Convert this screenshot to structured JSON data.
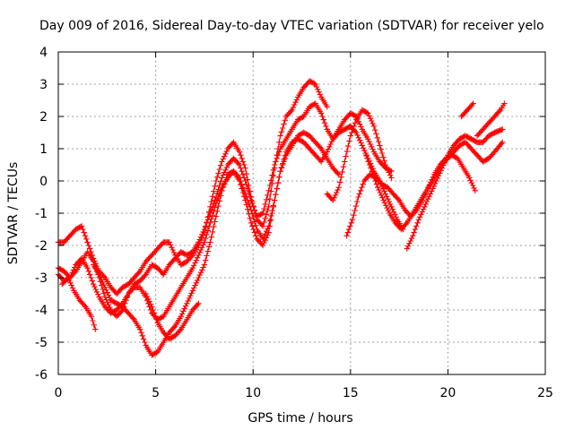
{
  "chart_data": {
    "type": "scatter",
    "title": "Day 009 of 2016, Sidereal Day-to-day VTEC variation (SDTVAR) for receiver yelo",
    "xlabel": "GPS time / hours",
    "ylabel": "SDTVAR / TECUs",
    "xlim": [
      0,
      25
    ],
    "ylim": [
      -6,
      4
    ],
    "xticks": [
      "0",
      "5",
      "10",
      "15",
      "20",
      "25"
    ],
    "yticks": [
      "-6",
      "-5",
      "-4",
      "-3",
      "-2",
      "-1",
      "0",
      "1",
      "2",
      "3",
      "4"
    ],
    "grid": true,
    "marker": "+",
    "color": "#ff0000",
    "series": [
      {
        "x": [
          0.0,
          0.3,
          0.6,
          0.9,
          1.2,
          1.5,
          1.8,
          2.1,
          2.4,
          2.7,
          3.0,
          3.3,
          3.6,
          3.9,
          4.2,
          4.5,
          4.8,
          5.1,
          5.4,
          5.7,
          6.0,
          6.3,
          6.6,
          6.9,
          7.2,
          7.5,
          7.8,
          8.1,
          8.4,
          8.7,
          9.0,
          9.3,
          9.6,
          9.9,
          10.2,
          10.5,
          10.8,
          11.1,
          11.4,
          11.7,
          12.0,
          12.3,
          12.6,
          12.9,
          13.2,
          13.5,
          13.8
        ],
        "y": [
          -1.9,
          -1.9,
          -1.7,
          -1.5,
          -1.4,
          -1.9,
          -2.4,
          -2.8,
          -3.0,
          -3.3,
          -3.5,
          -3.3,
          -3.2,
          -3.0,
          -2.8,
          -2.5,
          -2.3,
          -2.1,
          -1.9,
          -1.9,
          -2.3,
          -2.6,
          -2.5,
          -2.3,
          -2.0,
          -1.6,
          -0.8,
          0.0,
          0.6,
          1.0,
          1.2,
          0.9,
          0.4,
          -0.5,
          -1.2,
          -1.4,
          -0.8,
          0.4,
          1.4,
          2.0,
          2.2,
          2.6,
          2.9,
          3.1,
          3.0,
          2.6,
          2.3
        ]
      },
      {
        "x": [
          0.0,
          0.3,
          0.6,
          0.9,
          1.2,
          1.5,
          1.8,
          2.1,
          2.4,
          2.7,
          3.0,
          3.3,
          3.6,
          3.9,
          4.2,
          4.5,
          4.8,
          5.1,
          5.4,
          5.7,
          6.0,
          6.3,
          6.6,
          6.9,
          7.2,
          7.5,
          7.8,
          8.1,
          8.4,
          8.7,
          9.0,
          9.3,
          9.6,
          9.9,
          10.2,
          10.5,
          10.8,
          11.1,
          11.4,
          11.7,
          12.0,
          12.3,
          12.6,
          12.9,
          13.2,
          13.5,
          13.8,
          14.1,
          14.4,
          14.7,
          15.0,
          15.3,
          15.6,
          15.9,
          16.2,
          16.5,
          16.8,
          17.1
        ],
        "y": [
          -2.7,
          -2.8,
          -3.0,
          -2.8,
          -2.5,
          -2.2,
          -2.5,
          -3.0,
          -3.6,
          -4.0,
          -4.2,
          -4.0,
          -3.5,
          -3.2,
          -3.1,
          -2.9,
          -2.6,
          -2.7,
          -2.9,
          -2.6,
          -2.4,
          -2.2,
          -2.3,
          -2.2,
          -1.9,
          -1.5,
          -1.0,
          -0.5,
          0.1,
          0.5,
          0.7,
          0.5,
          0.0,
          -0.6,
          -1.1,
          -1.0,
          -0.3,
          0.5,
          1.0,
          1.3,
          1.6,
          1.9,
          2.0,
          2.3,
          2.4,
          2.1,
          1.6,
          1.3,
          1.6,
          1.9,
          2.1,
          2.0,
          1.6,
          1.3,
          0.9,
          0.6,
          0.4,
          0.3
        ]
      },
      {
        "x": [
          0.0,
          0.3,
          0.6,
          0.9,
          1.2,
          1.5,
          1.8,
          2.1,
          2.4,
          2.7,
          3.0,
          3.3,
          3.6,
          3.9,
          4.2,
          4.5,
          4.8,
          5.1,
          5.4,
          5.7,
          6.0,
          6.3,
          6.6,
          6.9,
          7.2,
          7.5,
          7.8,
          8.1,
          8.4,
          8.7,
          9.0,
          9.3,
          9.6,
          9.9,
          10.2,
          10.5,
          10.8,
          11.1,
          11.4,
          11.7,
          12.0,
          12.3,
          12.6,
          12.9,
          13.2,
          13.5,
          13.8,
          14.1,
          14.4,
          14.7,
          15.0,
          15.3,
          15.6,
          15.9,
          16.2,
          16.5,
          16.8,
          17.1,
          17.4,
          17.7
        ],
        "y": [
          -2.9,
          -3.1,
          -3.0,
          -2.6,
          -2.4,
          -2.7,
          -3.2,
          -3.6,
          -3.9,
          -4.1,
          -4.0,
          -3.8,
          -3.5,
          -3.3,
          -3.3,
          -3.6,
          -4.1,
          -4.3,
          -4.2,
          -3.9,
          -3.6,
          -3.3,
          -3.0,
          -2.7,
          -2.3,
          -1.9,
          -1.3,
          -0.7,
          -0.2,
          0.1,
          0.3,
          0.1,
          -0.4,
          -0.9,
          -1.5,
          -1.8,
          -1.4,
          -0.6,
          0.3,
          0.9,
          1.2,
          1.3,
          1.2,
          1.0,
          0.8,
          0.6,
          0.9,
          1.3,
          1.5,
          1.6,
          1.7,
          1.5,
          1.1,
          0.7,
          0.3,
          0.0,
          -0.4,
          -0.8,
          -1.2,
          -1.5
        ]
      },
      {
        "x": [
          1.8,
          2.1,
          2.4,
          2.7,
          3.0,
          3.3,
          3.6,
          3.9,
          4.2,
          4.5,
          4.8,
          5.1,
          5.4,
          5.7,
          6.0,
          6.3,
          6.6,
          6.9,
          7.2,
          7.5,
          7.8,
          8.1,
          8.4,
          8.7,
          9.0,
          9.3,
          9.6,
          9.9,
          10.2,
          10.5,
          10.8,
          11.1,
          11.4,
          11.7,
          12.0,
          12.3,
          12.6,
          12.9,
          13.2,
          13.5,
          13.8,
          14.1,
          14.4
        ],
        "y": [
          -2.6,
          -2.9,
          -3.3,
          -3.7,
          -3.8,
          -3.9,
          -4.1,
          -4.3,
          -4.6,
          -5.1,
          -5.4,
          -5.3,
          -5.0,
          -4.7,
          -4.5,
          -4.2,
          -3.8,
          -3.4,
          -3.0,
          -2.6,
          -1.9,
          -1.1,
          -0.3,
          0.2,
          0.3,
          0.0,
          -0.6,
          -1.3,
          -1.8,
          -2.0,
          -1.6,
          -0.6,
          0.3,
          0.8,
          1.1,
          1.4,
          1.5,
          1.4,
          1.2,
          1.0,
          0.7,
          0.4,
          0.2
        ]
      },
      {
        "x": [
          0.2,
          0.5,
          0.8,
          1.1,
          1.4,
          1.7,
          1.9
        ],
        "y": [
          -3.2,
          -3.0,
          -3.4,
          -3.7,
          -3.9,
          -4.2,
          -4.6
        ]
      },
      {
        "x": [
          4.5,
          4.8,
          5.1,
          5.4,
          5.7,
          6.0,
          6.3,
          6.6,
          6.9,
          7.2
        ],
        "y": [
          -3.5,
          -3.9,
          -4.4,
          -4.7,
          -4.9,
          -4.8,
          -4.6,
          -4.3,
          -4.0,
          -3.8
        ]
      },
      {
        "x": [
          14.8,
          15.1,
          15.4,
          15.7,
          16.0,
          16.3,
          16.6,
          16.9,
          17.2,
          17.5,
          17.8,
          18.1,
          18.4,
          18.7,
          19.0,
          19.3,
          19.6,
          19.9,
          20.2,
          20.5,
          20.8,
          21.1,
          21.4
        ],
        "y": [
          -1.7,
          -1.2,
          -0.5,
          0.0,
          0.2,
          0.1,
          -0.1,
          -0.2,
          -0.4,
          -0.6,
          -0.9,
          -1.1,
          -0.9,
          -0.6,
          -0.2,
          0.2,
          0.5,
          0.7,
          0.8,
          0.7,
          0.4,
          0.1,
          -0.3
        ]
      },
      {
        "x": [
          15.8,
          16.1,
          16.4,
          16.7,
          17.0,
          17.3,
          17.6,
          17.9,
          18.2,
          18.5,
          18.8,
          19.1,
          19.4,
          19.7,
          20.0,
          20.3,
          20.6,
          20.9,
          21.2,
          21.5,
          21.8,
          22.1,
          22.4,
          22.8
        ],
        "y": [
          0.8,
          0.3,
          -0.2,
          -0.6,
          -1.0,
          -1.3,
          -1.5,
          -1.3,
          -1.0,
          -0.7,
          -0.4,
          -0.1,
          0.2,
          0.5,
          0.7,
          0.9,
          1.1,
          1.2,
          1.0,
          0.8,
          0.6,
          0.7,
          0.9,
          1.2
        ]
      },
      {
        "x": [
          17.9,
          18.2,
          18.5,
          18.8,
          19.1,
          19.4,
          19.7,
          20.0,
          20.3,
          20.6,
          20.9,
          21.2,
          21.5,
          21.8,
          22.1,
          22.4,
          22.8
        ],
        "y": [
          -2.1,
          -1.7,
          -1.2,
          -0.8,
          -0.4,
          0.0,
          0.4,
          0.8,
          1.1,
          1.3,
          1.4,
          1.3,
          1.2,
          1.2,
          1.4,
          1.5,
          1.6
        ]
      },
      {
        "x": [
          20.7,
          21.0,
          21.3
        ],
        "y": [
          2.0,
          2.2,
          2.4
        ]
      },
      {
        "x": [
          21.5,
          21.8,
          22.1,
          22.4,
          22.7,
          22.9
        ],
        "y": [
          1.4,
          1.6,
          1.8,
          2.0,
          2.2,
          2.4
        ]
      },
      {
        "x": [
          13.8,
          14.1,
          14.4,
          14.7,
          15.0,
          15.3,
          15.6,
          15.9,
          16.2,
          16.5,
          16.8,
          17.1
        ],
        "y": [
          -0.4,
          -0.6,
          -0.2,
          0.6,
          1.4,
          1.9,
          2.2,
          2.1,
          1.7,
          1.1,
          0.5,
          0.1
        ]
      }
    ]
  }
}
